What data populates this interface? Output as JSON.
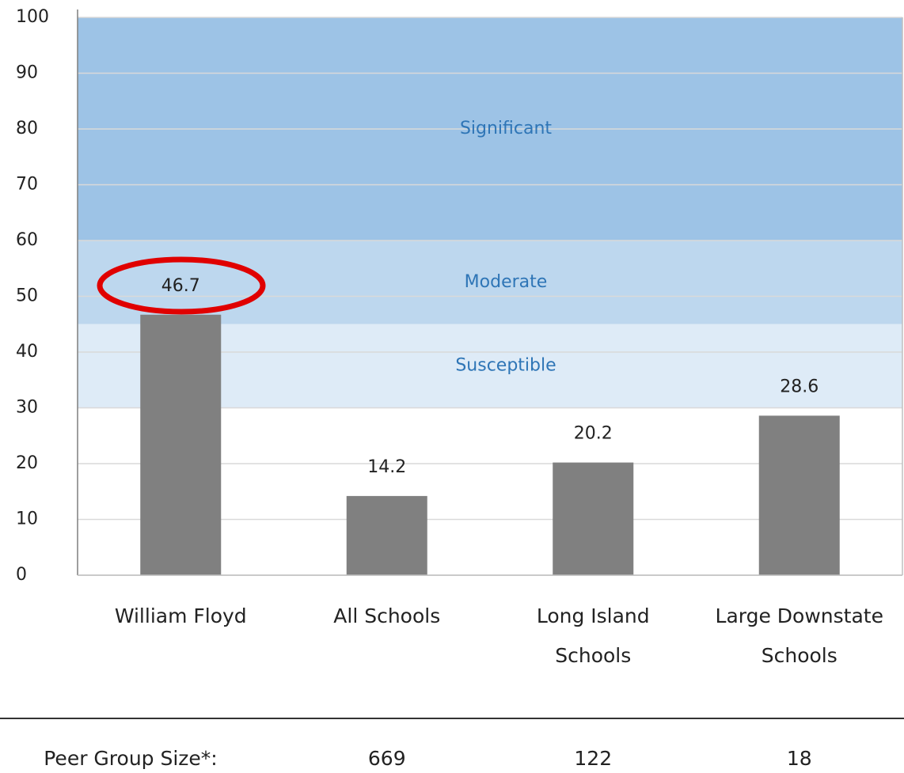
{
  "chart_data": {
    "type": "bar",
    "categories": [
      "William Floyd",
      "All Schools",
      "Long Island\nSchools",
      "Large Downstate\nSchools"
    ],
    "values": [
      46.7,
      14.2,
      20.2,
      28.6
    ],
    "color": "#808080",
    "ylim": [
      0,
      100
    ],
    "yticks": [
      0,
      10,
      20,
      30,
      40,
      50,
      60,
      70,
      80,
      90,
      100
    ],
    "grid": true,
    "bands": [
      {
        "name": "Significant",
        "from": 60,
        "to": 100,
        "color": "#9dc3e6"
      },
      {
        "name": "Moderate",
        "from": 45,
        "to": 60,
        "color": "#bdd7ee"
      },
      {
        "name": "Susceptible",
        "from": 30,
        "to": 45,
        "color": "#deebf7"
      }
    ],
    "footer": {
      "label": "Peer Group Size*:",
      "values": [
        669,
        122,
        18
      ]
    }
  }
}
